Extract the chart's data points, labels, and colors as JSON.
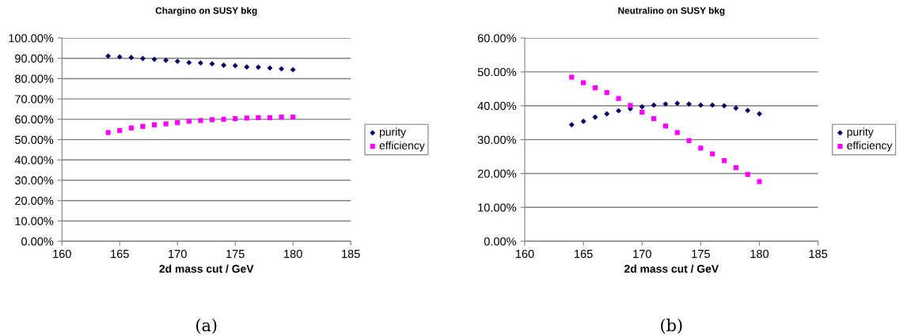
{
  "chart_data": [
    {
      "type": "scatter",
      "title": "Chargino on SUSY bkg",
      "xlabel": "2d mass cut / GeV",
      "annotations": [
        "(a)"
      ],
      "x": [
        164,
        165,
        166,
        167,
        168,
        169,
        170,
        171,
        172,
        173,
        174,
        175,
        176,
        177,
        178,
        179,
        180
      ],
      "series": [
        {
          "name": "purity",
          "color": "#000066",
          "marker": "diamond",
          "values": [
            91.1,
            90.7,
            90.4,
            89.9,
            89.5,
            89.0,
            88.5,
            87.9,
            87.7,
            87.3,
            86.6,
            86.4,
            85.7,
            85.6,
            85.2,
            84.8,
            84.4
          ]
        },
        {
          "name": "efficiency",
          "color": "#ff00ff",
          "marker": "square",
          "values": [
            53.5,
            54.5,
            55.7,
            56.5,
            57.3,
            57.8,
            58.3,
            59.0,
            59.4,
            59.8,
            60.0,
            60.3,
            60.6,
            60.8,
            60.8,
            61.1,
            61.1
          ]
        }
      ],
      "xlim": [
        160,
        185
      ],
      "xticks": [
        160,
        165,
        170,
        175,
        180,
        185
      ],
      "ylim": [
        0,
        100
      ],
      "yticks": [
        {
          "value": 0,
          "label": "0.00%"
        },
        {
          "value": 10,
          "label": "10.00%"
        },
        {
          "value": 20,
          "label": "20.00%"
        },
        {
          "value": 30,
          "label": "30.00%"
        },
        {
          "value": 40,
          "label": "40.00%"
        },
        {
          "value": 50,
          "label": "50.00%"
        },
        {
          "value": 60,
          "label": "60.00%"
        },
        {
          "value": 70,
          "label": "70.00%"
        },
        {
          "value": 80,
          "label": "80.00%"
        },
        {
          "value": 90,
          "label": "90.00%"
        },
        {
          "value": 100,
          "label": "100.00%"
        }
      ],
      "grid": "y",
      "legend": "right"
    },
    {
      "type": "scatter",
      "title": "Neutralino on SUSY bkg",
      "xlabel": "2d mass cut / GeV",
      "annotations": [
        "(b)"
      ],
      "x": [
        164,
        165,
        166,
        167,
        168,
        169,
        170,
        171,
        172,
        173,
        174,
        175,
        176,
        177,
        178,
        179,
        180
      ],
      "series": [
        {
          "name": "purity",
          "color": "#000066",
          "marker": "diamond",
          "values": [
            34.4,
            35.4,
            36.6,
            37.6,
            38.5,
            39.1,
            39.7,
            40.2,
            40.5,
            40.7,
            40.5,
            40.2,
            40.2,
            40.0,
            39.3,
            38.6,
            37.6
          ]
        },
        {
          "name": "efficiency",
          "color": "#ff00ff",
          "marker": "square",
          "values": [
            48.4,
            46.8,
            45.3,
            43.9,
            42.1,
            40.1,
            38.1,
            36.2,
            34.0,
            32.1,
            29.7,
            27.5,
            25.8,
            23.8,
            21.7,
            19.7,
            17.6
          ]
        }
      ],
      "xlim": [
        160,
        185
      ],
      "xticks": [
        160,
        165,
        170,
        175,
        180,
        185
      ],
      "ylim": [
        0,
        60
      ],
      "yticks": [
        {
          "value": 0,
          "label": "0.00%"
        },
        {
          "value": 10,
          "label": "10.00%"
        },
        {
          "value": 20,
          "label": "20.00%"
        },
        {
          "value": 30,
          "label": "30.00%"
        },
        {
          "value": 40,
          "label": "40.00%"
        },
        {
          "value": 50,
          "label": "50.00%"
        },
        {
          "value": 60,
          "label": "60.00%"
        }
      ],
      "grid": "y",
      "legend": "right"
    }
  ]
}
